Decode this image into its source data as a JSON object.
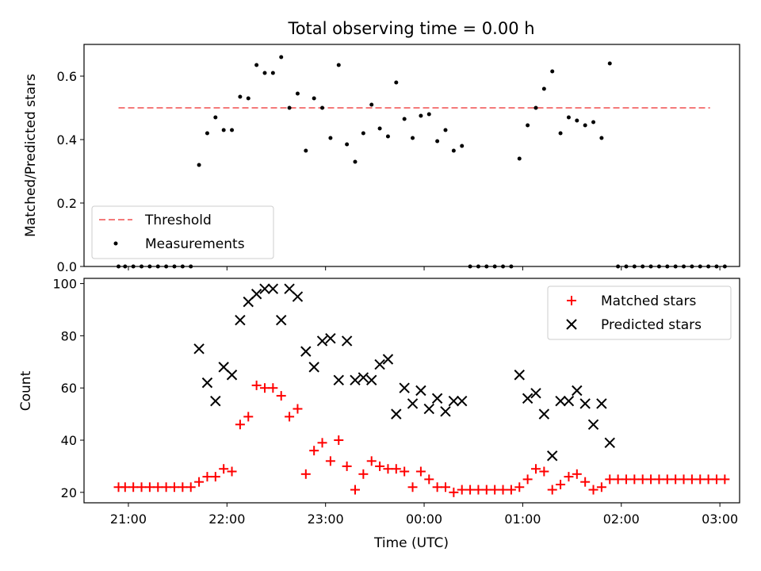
{
  "figure": {
    "title": "Total observing time = 0.00 h",
    "xlabel": "Time (UTC)"
  },
  "chart_data": [
    {
      "type": "scatter",
      "title": "Total observing time = 0.00 h",
      "ylabel": "Matched/Predicted stars",
      "xlabel": "",
      "ylim": [
        0,
        0.7
      ],
      "xlim": [
        "20:33",
        "03:12"
      ],
      "yticks": [
        "0.0",
        "0.2",
        "0.4",
        "0.6"
      ],
      "legend_position": "lower-left",
      "threshold": {
        "name": "Threshold",
        "value": 0.5,
        "x_range": [
          "20:54",
          "02:54"
        ],
        "color": "#f47a7a"
      },
      "series": [
        {
          "name": "Measurements",
          "color": "#000000",
          "points": [
            [
              "20:54",
              0
            ],
            [
              "20:58",
              0
            ],
            [
              "21:03",
              0
            ],
            [
              "21:08",
              0
            ],
            [
              "21:13",
              0
            ],
            [
              "21:18",
              0
            ],
            [
              "21:23",
              0
            ],
            [
              "21:28",
              0
            ],
            [
              "21:33",
              0
            ],
            [
              "21:38",
              0
            ],
            [
              "21:43",
              0.32
            ],
            [
              "21:48",
              0.42
            ],
            [
              "21:53",
              0.47
            ],
            [
              "21:58",
              0.43
            ],
            [
              "22:03",
              0.43
            ],
            [
              "22:08",
              0.535
            ],
            [
              "22:13",
              0.53
            ],
            [
              "22:18",
              0.635
            ],
            [
              "22:23",
              0.61
            ],
            [
              "22:28",
              0.61
            ],
            [
              "22:33",
              0.66
            ],
            [
              "22:38",
              0.5
            ],
            [
              "22:43",
              0.545
            ],
            [
              "22:48",
              0.365
            ],
            [
              "22:53",
              0.53
            ],
            [
              "22:58",
              0.5
            ],
            [
              "23:03",
              0.405
            ],
            [
              "23:08",
              0.635
            ],
            [
              "23:13",
              0.385
            ],
            [
              "23:18",
              0.33
            ],
            [
              "23:23",
              0.42
            ],
            [
              "23:28",
              0.51
            ],
            [
              "23:33",
              0.435
            ],
            [
              "23:38",
              0.41
            ],
            [
              "23:43",
              0.58
            ],
            [
              "23:48",
              0.465
            ],
            [
              "23:53",
              0.405
            ],
            [
              "23:58",
              0.475
            ],
            [
              "00:03",
              0.48
            ],
            [
              "00:08",
              0.395
            ],
            [
              "00:13",
              0.43
            ],
            [
              "00:18",
              0.365
            ],
            [
              "00:23",
              0.38
            ],
            [
              "00:28",
              0
            ],
            [
              "00:33",
              0
            ],
            [
              "00:38",
              0
            ],
            [
              "00:43",
              0
            ],
            [
              "00:48",
              0
            ],
            [
              "00:53",
              0
            ],
            [
              "00:58",
              0.34
            ],
            [
              "01:03",
              0.445
            ],
            [
              "01:08",
              0.5
            ],
            [
              "01:13",
              0.56
            ],
            [
              "01:18",
              0.615
            ],
            [
              "01:23",
              0.42
            ],
            [
              "01:28",
              0.47
            ],
            [
              "01:33",
              0.46
            ],
            [
              "01:38",
              0.445
            ],
            [
              "01:43",
              0.455
            ],
            [
              "01:48",
              0.405
            ],
            [
              "01:53",
              0.64
            ],
            [
              "01:58",
              0
            ],
            [
              "02:03",
              0
            ],
            [
              "02:08",
              0
            ],
            [
              "02:13",
              0
            ],
            [
              "02:18",
              0
            ],
            [
              "02:23",
              0
            ],
            [
              "02:28",
              0
            ],
            [
              "02:33",
              0
            ],
            [
              "02:38",
              0
            ],
            [
              "02:43",
              0
            ],
            [
              "02:48",
              0
            ],
            [
              "02:53",
              0
            ],
            [
              "02:58",
              0
            ],
            [
              "03:03",
              0
            ]
          ]
        }
      ]
    },
    {
      "type": "scatter",
      "title": "",
      "ylabel": "Count",
      "xlabel": "Time (UTC)",
      "ylim": [
        16,
        102
      ],
      "xlim": [
        "20:33",
        "03:12"
      ],
      "yticks": [
        "20",
        "40",
        "60",
        "80",
        "100"
      ],
      "xticks": [
        "21:00",
        "22:00",
        "23:00",
        "00:00",
        "01:00",
        "02:00",
        "03:00"
      ],
      "legend_position": "upper-right",
      "series": [
        {
          "name": "Matched stars",
          "marker": "+",
          "color": "#ff0000",
          "points": [
            [
              "20:54",
              22
            ],
            [
              "20:58",
              22
            ],
            [
              "21:03",
              22
            ],
            [
              "21:08",
              22
            ],
            [
              "21:13",
              22
            ],
            [
              "21:18",
              22
            ],
            [
              "21:23",
              22
            ],
            [
              "21:28",
              22
            ],
            [
              "21:33",
              22
            ],
            [
              "21:38",
              22
            ],
            [
              "21:43",
              24
            ],
            [
              "21:48",
              26
            ],
            [
              "21:53",
              26
            ],
            [
              "21:58",
              29
            ],
            [
              "22:03",
              28
            ],
            [
              "22:08",
              46
            ],
            [
              "22:13",
              49
            ],
            [
              "22:18",
              61
            ],
            [
              "22:23",
              60
            ],
            [
              "22:28",
              60
            ],
            [
              "22:33",
              57
            ],
            [
              "22:38",
              49
            ],
            [
              "22:43",
              52
            ],
            [
              "22:48",
              27
            ],
            [
              "22:53",
              36
            ],
            [
              "22:58",
              39
            ],
            [
              "23:03",
              32
            ],
            [
              "23:08",
              40
            ],
            [
              "23:13",
              30
            ],
            [
              "23:18",
              21
            ],
            [
              "23:23",
              27
            ],
            [
              "23:28",
              32
            ],
            [
              "23:33",
              30
            ],
            [
              "23:38",
              29
            ],
            [
              "23:43",
              29
            ],
            [
              "23:48",
              28
            ],
            [
              "23:53",
              22
            ],
            [
              "23:58",
              28
            ],
            [
              "00:03",
              25
            ],
            [
              "00:08",
              22
            ],
            [
              "00:13",
              22
            ],
            [
              "00:18",
              20
            ],
            [
              "00:23",
              21
            ],
            [
              "00:28",
              21
            ],
            [
              "00:33",
              21
            ],
            [
              "00:38",
              21
            ],
            [
              "00:43",
              21
            ],
            [
              "00:48",
              21
            ],
            [
              "00:53",
              21
            ],
            [
              "00:58",
              22
            ],
            [
              "01:03",
              25
            ],
            [
              "01:08",
              29
            ],
            [
              "01:13",
              28
            ],
            [
              "01:18",
              21
            ],
            [
              "01:23",
              23
            ],
            [
              "01:28",
              26
            ],
            [
              "01:33",
              27
            ],
            [
              "01:38",
              24
            ],
            [
              "01:43",
              21
            ],
            [
              "01:48",
              22
            ],
            [
              "01:53",
              25
            ],
            [
              "01:58",
              25
            ],
            [
              "02:03",
              25
            ],
            [
              "02:08",
              25
            ],
            [
              "02:13",
              25
            ],
            [
              "02:18",
              25
            ],
            [
              "02:23",
              25
            ],
            [
              "02:28",
              25
            ],
            [
              "02:33",
              25
            ],
            [
              "02:38",
              25
            ],
            [
              "02:43",
              25
            ],
            [
              "02:48",
              25
            ],
            [
              "02:53",
              25
            ],
            [
              "02:58",
              25
            ],
            [
              "03:03",
              25
            ]
          ]
        },
        {
          "name": "Predicted stars",
          "marker": "x",
          "color": "#000000",
          "points": [
            [
              "21:43",
              75
            ],
            [
              "21:48",
              62
            ],
            [
              "21:53",
              55
            ],
            [
              "21:58",
              68
            ],
            [
              "22:03",
              65
            ],
            [
              "22:08",
              86
            ],
            [
              "22:13",
              93
            ],
            [
              "22:18",
              96
            ],
            [
              "22:23",
              98
            ],
            [
              "22:28",
              98
            ],
            [
              "22:33",
              86
            ],
            [
              "22:38",
              98
            ],
            [
              "22:43",
              95
            ],
            [
              "22:48",
              74
            ],
            [
              "22:53",
              68
            ],
            [
              "22:58",
              78
            ],
            [
              "23:03",
              79
            ],
            [
              "23:08",
              63
            ],
            [
              "23:13",
              78
            ],
            [
              "23:18",
              63
            ],
            [
              "23:23",
              64
            ],
            [
              "23:28",
              63
            ],
            [
              "23:33",
              69
            ],
            [
              "23:38",
              71
            ],
            [
              "23:43",
              50
            ],
            [
              "23:48",
              60
            ],
            [
              "23:53",
              54
            ],
            [
              "23:58",
              59
            ],
            [
              "00:03",
              52
            ],
            [
              "00:08",
              56
            ],
            [
              "00:13",
              51
            ],
            [
              "00:18",
              55
            ],
            [
              "00:23",
              55
            ],
            [
              "00:58",
              65
            ],
            [
              "01:03",
              56
            ],
            [
              "01:08",
              58
            ],
            [
              "01:13",
              50
            ],
            [
              "01:18",
              34
            ],
            [
              "01:23",
              55
            ],
            [
              "01:28",
              55
            ],
            [
              "01:33",
              59
            ],
            [
              "01:38",
              54
            ],
            [
              "01:43",
              46
            ],
            [
              "01:48",
              54
            ],
            [
              "01:53",
              39
            ]
          ]
        }
      ]
    }
  ]
}
